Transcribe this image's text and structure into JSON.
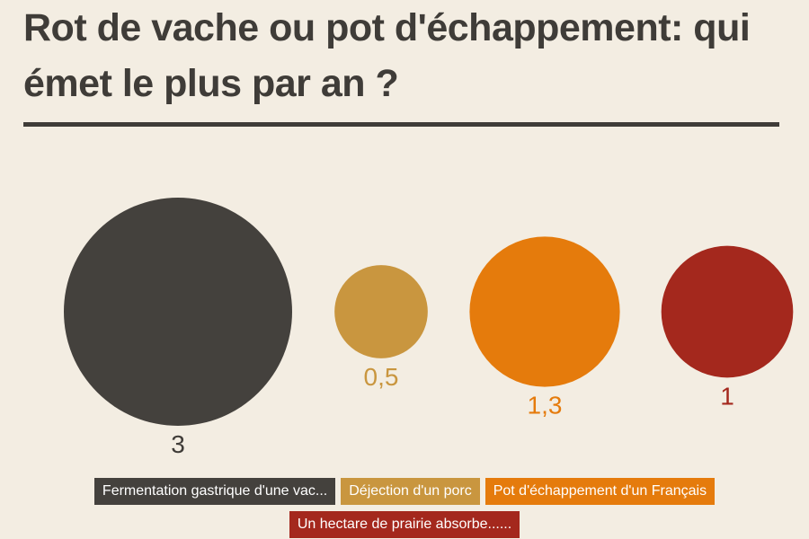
{
  "title": "Rot de vache ou pot d'échappement: qui émet le plus par an ?",
  "chart_data": {
    "type": "bubble",
    "categories": [
      "Fermentation gastrique d'une vac...",
      "Déjection d'un porc",
      "Pot d'échappement d'un Français",
      "Un hectare de prairie absorbe......"
    ],
    "values": [
      3,
      0.5,
      1.3,
      1
    ],
    "value_labels": [
      "3",
      "0,5",
      "1,3",
      "1"
    ],
    "colors": [
      "#44413d",
      "#c9963f",
      "#e57b0c",
      "#a4281d"
    ],
    "legend_placement": "bottom"
  }
}
